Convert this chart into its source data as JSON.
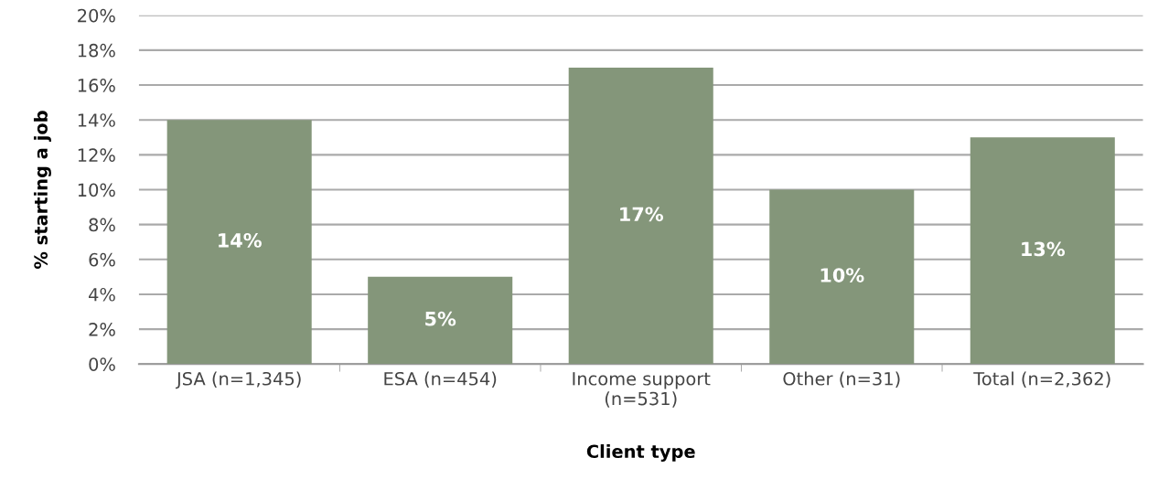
{
  "chart_data": {
    "type": "bar",
    "xlabel": "Client type",
    "ylabel": "% starting a job",
    "categories": [
      "JSA (n=1,345)",
      "ESA (n=454)",
      "Income support (n=531)",
      "Other (n=31)",
      "Total (n=2,362)"
    ],
    "values": [
      14,
      5,
      17,
      10,
      13
    ],
    "value_labels": [
      "14%",
      "5%",
      "17%",
      "10%",
      "13%"
    ],
    "color": "#84967a",
    "ylim": [
      0,
      20
    ],
    "yticks": [
      {
        "value": 0,
        "label": "0%"
      },
      {
        "value": 2,
        "label": "2%"
      },
      {
        "value": 4,
        "label": "4%"
      },
      {
        "value": 6,
        "label": "6%"
      },
      {
        "value": 8,
        "label": "8%"
      },
      {
        "value": 10,
        "label": "10%"
      },
      {
        "value": 12,
        "label": "12%"
      },
      {
        "value": 14,
        "label": "14%"
      },
      {
        "value": 16,
        "label": "16%"
      },
      {
        "value": 18,
        "label": "18%"
      },
      {
        "value": 20,
        "label": "20%"
      }
    ],
    "grid": "y"
  }
}
